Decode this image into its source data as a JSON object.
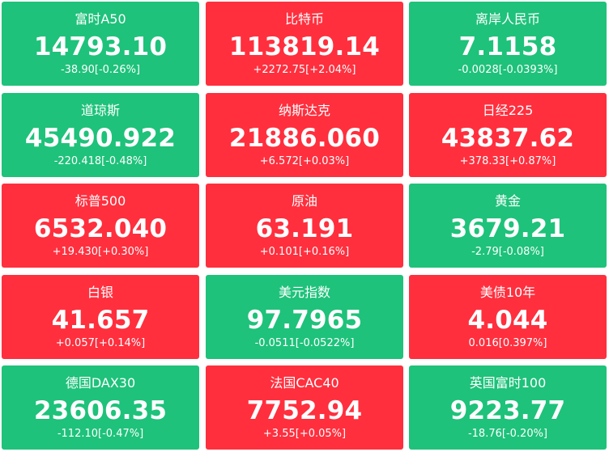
{
  "colors": {
    "down": "#1ec27a",
    "up": "#ff2f3e",
    "text": "#ffffff"
  },
  "tiles": [
    {
      "name": "富时A50",
      "price": "14793.10",
      "change": "-38.90[-0.26%]",
      "trend": "down"
    },
    {
      "name": "比特币",
      "price": "113819.14",
      "change": "+2272.75[+2.04%]",
      "trend": "up"
    },
    {
      "name": "离岸人民币",
      "price": "7.1158",
      "change": "-0.0028[-0.0393%]",
      "trend": "down"
    },
    {
      "name": "道琼斯",
      "price": "45490.922",
      "change": "-220.418[-0.48%]",
      "trend": "down"
    },
    {
      "name": "纳斯达克",
      "price": "21886.060",
      "change": "+6.572[+0.03%]",
      "trend": "up"
    },
    {
      "name": "日经225",
      "price": "43837.62",
      "change": "+378.33[+0.87%]",
      "trend": "up"
    },
    {
      "name": "标普500",
      "price": "6532.040",
      "change": "+19.430[+0.30%]",
      "trend": "up"
    },
    {
      "name": "原油",
      "price": "63.191",
      "change": "+0.101[+0.16%]",
      "trend": "up"
    },
    {
      "name": "黄金",
      "price": "3679.21",
      "change": "-2.79[-0.08%]",
      "trend": "down"
    },
    {
      "name": "白银",
      "price": "41.657",
      "change": "+0.057[+0.14%]",
      "trend": "up"
    },
    {
      "name": "美元指数",
      "price": "97.7965",
      "change": "-0.0511[-0.0522%]",
      "trend": "down"
    },
    {
      "name": "美债10年",
      "price": "4.044",
      "change": "0.016[0.397%]",
      "trend": "up"
    },
    {
      "name": "德国DAX30",
      "price": "23606.35",
      "change": "-112.10[-0.47%]",
      "trend": "down"
    },
    {
      "name": "法国CAC40",
      "price": "7752.94",
      "change": "+3.55[+0.05%]",
      "trend": "up"
    },
    {
      "name": "英国富时100",
      "price": "9223.77",
      "change": "-18.76[-0.20%]",
      "trend": "down"
    }
  ]
}
